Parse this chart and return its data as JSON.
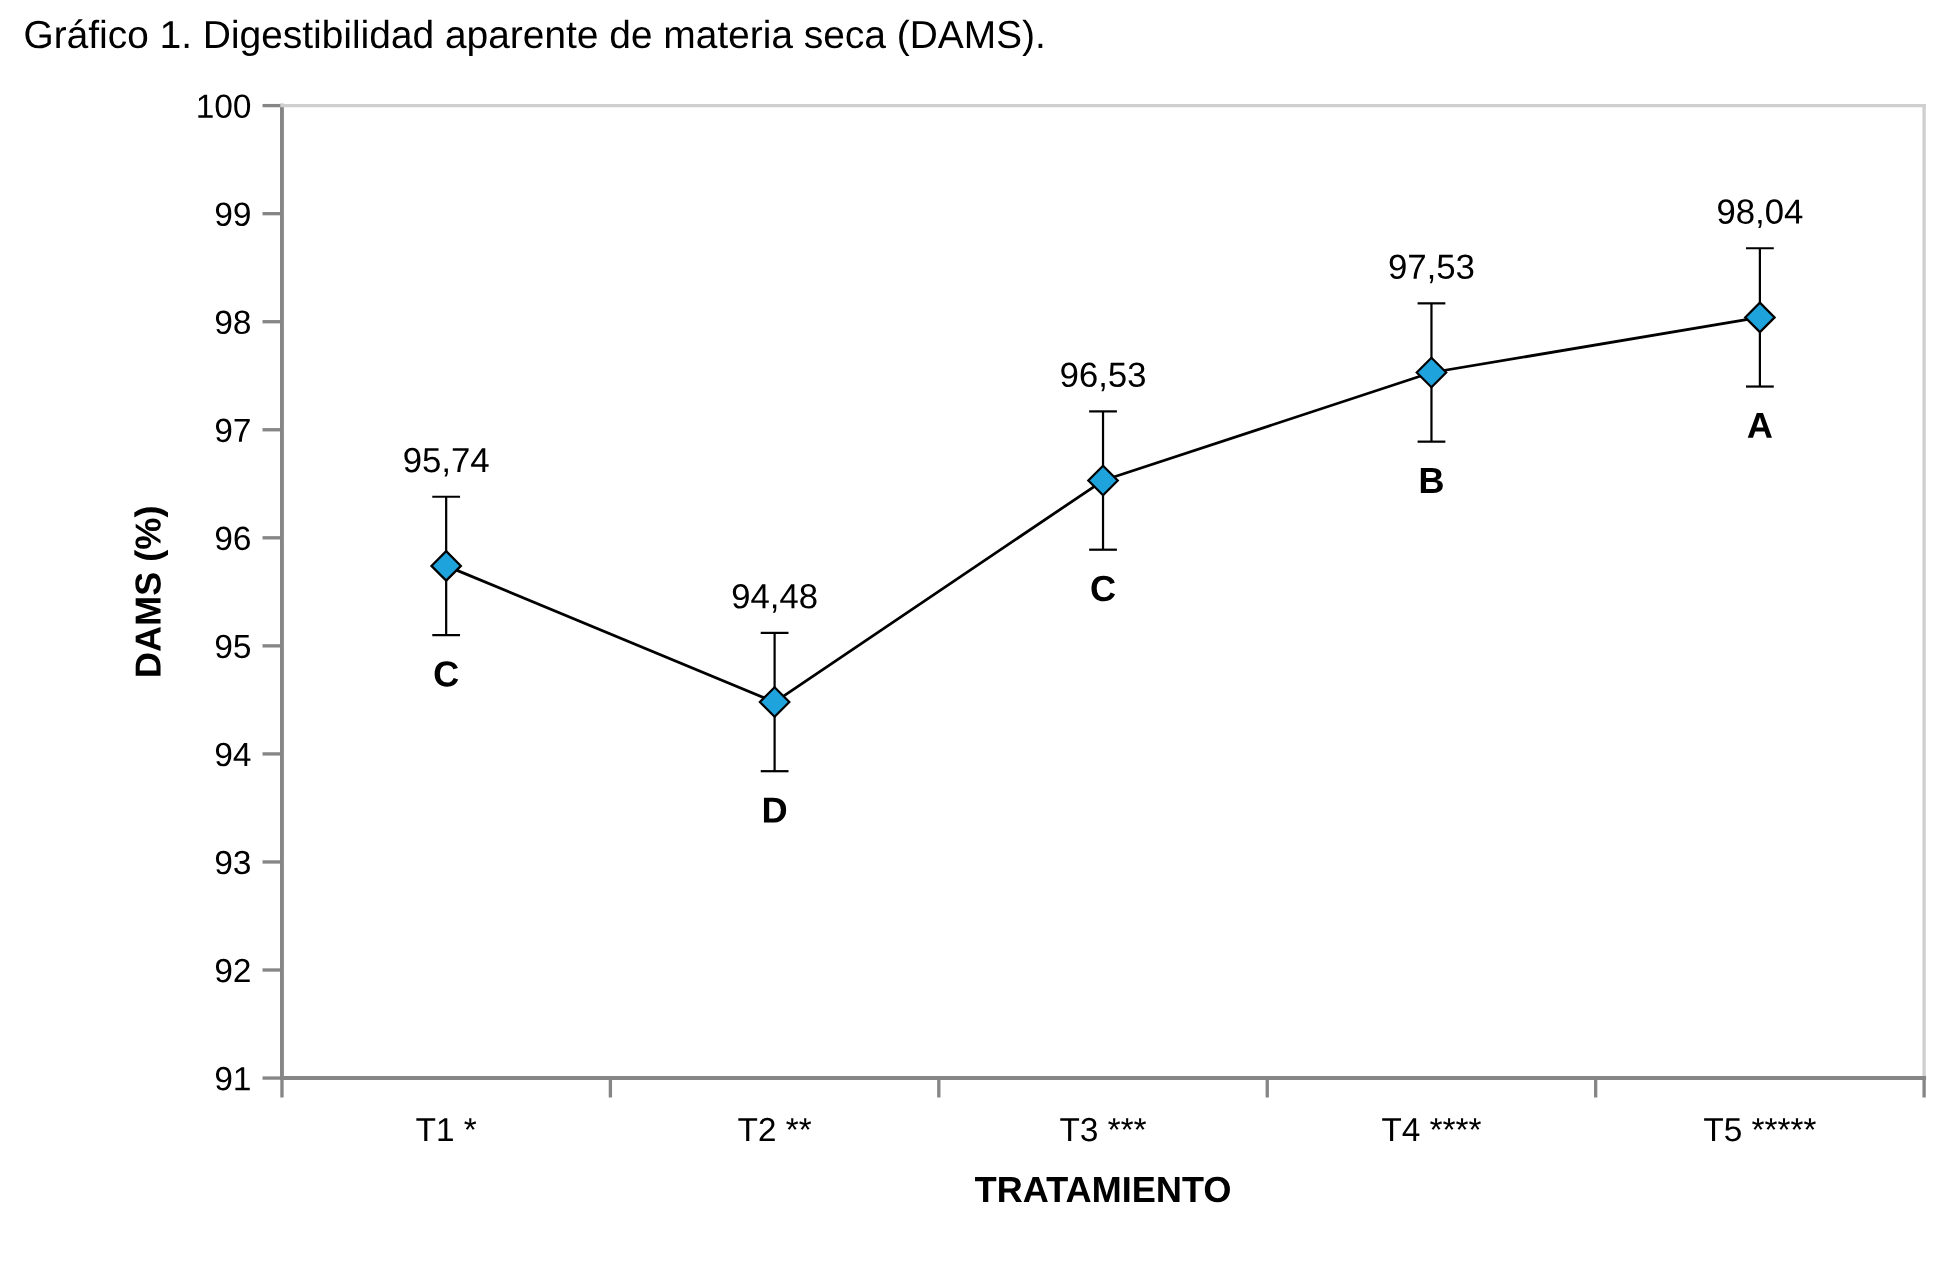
{
  "chart_data": {
    "type": "line",
    "title": "Gráfico 1. Digestibilidad aparente de materia seca (DAMS).",
    "xlabel": "TRATAMIENTO",
    "ylabel": "DAMS (%)",
    "categories": [
      "T1 *",
      "T2 **",
      "T3 ***",
      "T4 ****",
      "T5 *****"
    ],
    "series": [
      {
        "color": "#1fa3dc",
        "values": [
          95.74,
          94.48,
          96.53,
          97.53,
          98.04
        ],
        "errors": [
          0.64,
          0.64,
          0.64,
          0.64,
          0.64
        ],
        "value_labels": [
          "95,74",
          "94,48",
          "96,53",
          "97,53",
          "98,04"
        ]
      }
    ],
    "ylim": [
      91,
      100
    ],
    "yticks": [
      91,
      92,
      93,
      94,
      95,
      96,
      97,
      98,
      99,
      100
    ],
    "marker": "diamond",
    "line_style": "solid",
    "annotations": [
      {
        "text": "C",
        "x": "T1 *",
        "y": 95.74
      },
      {
        "text": "D",
        "x": "T2 **",
        "y": 94.48
      },
      {
        "text": "C",
        "x": "T3 ***",
        "y": 96.53
      },
      {
        "text": "B",
        "x": "T4 ****",
        "y": 97.53
      },
      {
        "text": "A",
        "x": "T5 *****",
        "y": 98.04
      }
    ]
  }
}
